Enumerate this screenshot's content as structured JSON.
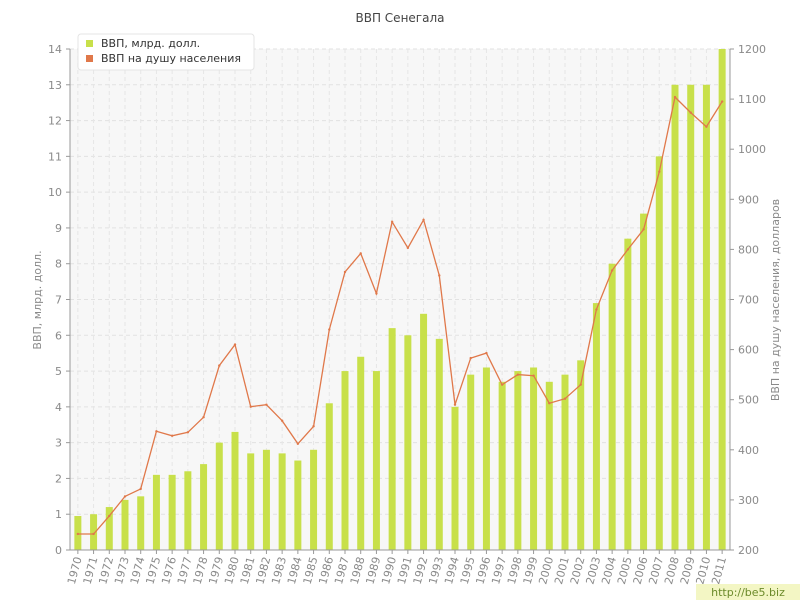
{
  "chart_data": {
    "type": "bar+line",
    "title": "ВВП Сенегала",
    "ylabel_left": "ВВП, млрд. долл.",
    "ylabel_right": "ВВП на душу населения, долларов",
    "ylim_left": [
      0,
      14
    ],
    "yticks_left": [
      "0",
      "1",
      "2",
      "3",
      "4",
      "5",
      "6",
      "7",
      "8",
      "9",
      "10",
      "11",
      "12",
      "13",
      "14"
    ],
    "ylim_right": [
      200,
      1200
    ],
    "yticks_right": [
      "200",
      "300",
      "400",
      "500",
      "600",
      "700",
      "800",
      "900",
      "1000",
      "1100",
      "1200"
    ],
    "categories": [
      "1970",
      "1971",
      "1972",
      "1973",
      "1974",
      "1975",
      "1976",
      "1977",
      "1978",
      "1979",
      "1980",
      "1981",
      "1982",
      "1983",
      "1984",
      "1985",
      "1986",
      "1987",
      "1988",
      "1989",
      "1990",
      "1991",
      "1992",
      "1993",
      "1994",
      "1995",
      "1996",
      "1997",
      "1998",
      "1999",
      "2000",
      "2001",
      "2002",
      "2003",
      "2004",
      "2005",
      "2006",
      "2007",
      "2008",
      "2009",
      "2010",
      "2011"
    ],
    "series": [
      {
        "name": "ВВП, млрд. долл.",
        "kind": "bar",
        "axis": "left",
        "color": "#c8e04a",
        "values": [
          0.95,
          1.0,
          1.2,
          1.4,
          1.5,
          2.1,
          2.1,
          2.2,
          2.4,
          3.0,
          3.3,
          2.7,
          2.8,
          2.7,
          2.5,
          2.8,
          4.1,
          5.0,
          5.4,
          5.0,
          6.2,
          6.0,
          6.6,
          5.9,
          4.0,
          4.9,
          5.1,
          4.7,
          5.0,
          5.1,
          4.7,
          4.9,
          5.3,
          6.9,
          8.0,
          8.7,
          9.4,
          11.0,
          13.0,
          13.0,
          13.0,
          14.0
        ]
      },
      {
        "name": "ВВП на душу населения",
        "kind": "line",
        "axis": "right",
        "color": "#e0784a",
        "values": [
          232,
          232,
          268,
          307,
          322,
          437,
          428,
          435,
          465,
          568,
          610,
          486,
          490,
          458,
          412,
          447,
          640,
          755,
          792,
          712,
          855,
          803,
          859,
          748,
          490,
          583,
          593,
          530,
          550,
          548,
          493,
          502,
          530,
          680,
          758,
          800,
          840,
          955,
          1104,
          1073,
          1045,
          1095
        ]
      }
    ],
    "legend_position": "top-left",
    "grid": true,
    "watermark": "http://be5.biz"
  }
}
